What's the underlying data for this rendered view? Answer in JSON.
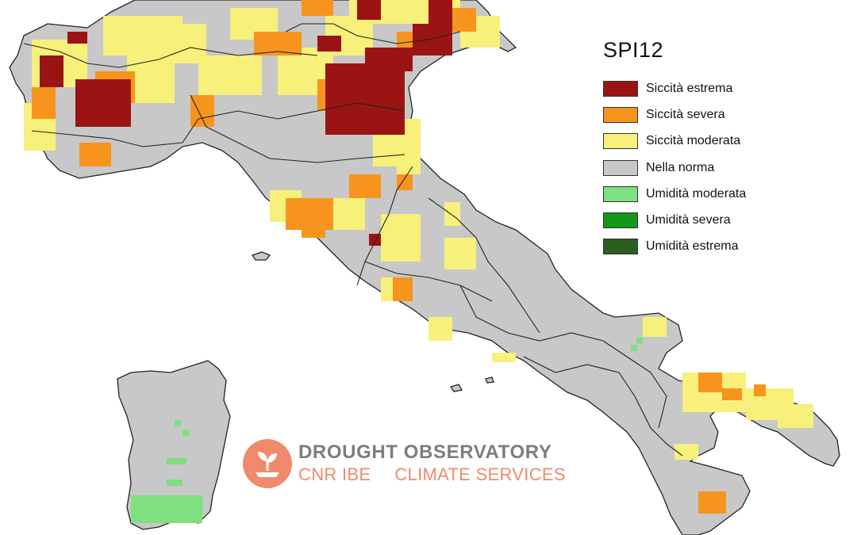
{
  "legend": {
    "title": "SPI12",
    "items": [
      {
        "label": "Siccità estrema",
        "color": "#9b1414"
      },
      {
        "label": "Siccità severa",
        "color": "#f7941d"
      },
      {
        "label": "Siccità moderata",
        "color": "#f7f07a"
      },
      {
        "label": "Nella norma",
        "color": "#c8c8c8"
      },
      {
        "label": "Umidità moderata",
        "color": "#7ee07e"
      },
      {
        "label": "Umidità severa",
        "color": "#13981a"
      },
      {
        "label": "Umidità estrema",
        "color": "#2b5e1f"
      }
    ]
  },
  "watermark": {
    "line1": "DROUGHT OBSERVATORY",
    "line2_left": "CNR IBE",
    "line2_right": "CLIMATE SERVICES"
  }
}
